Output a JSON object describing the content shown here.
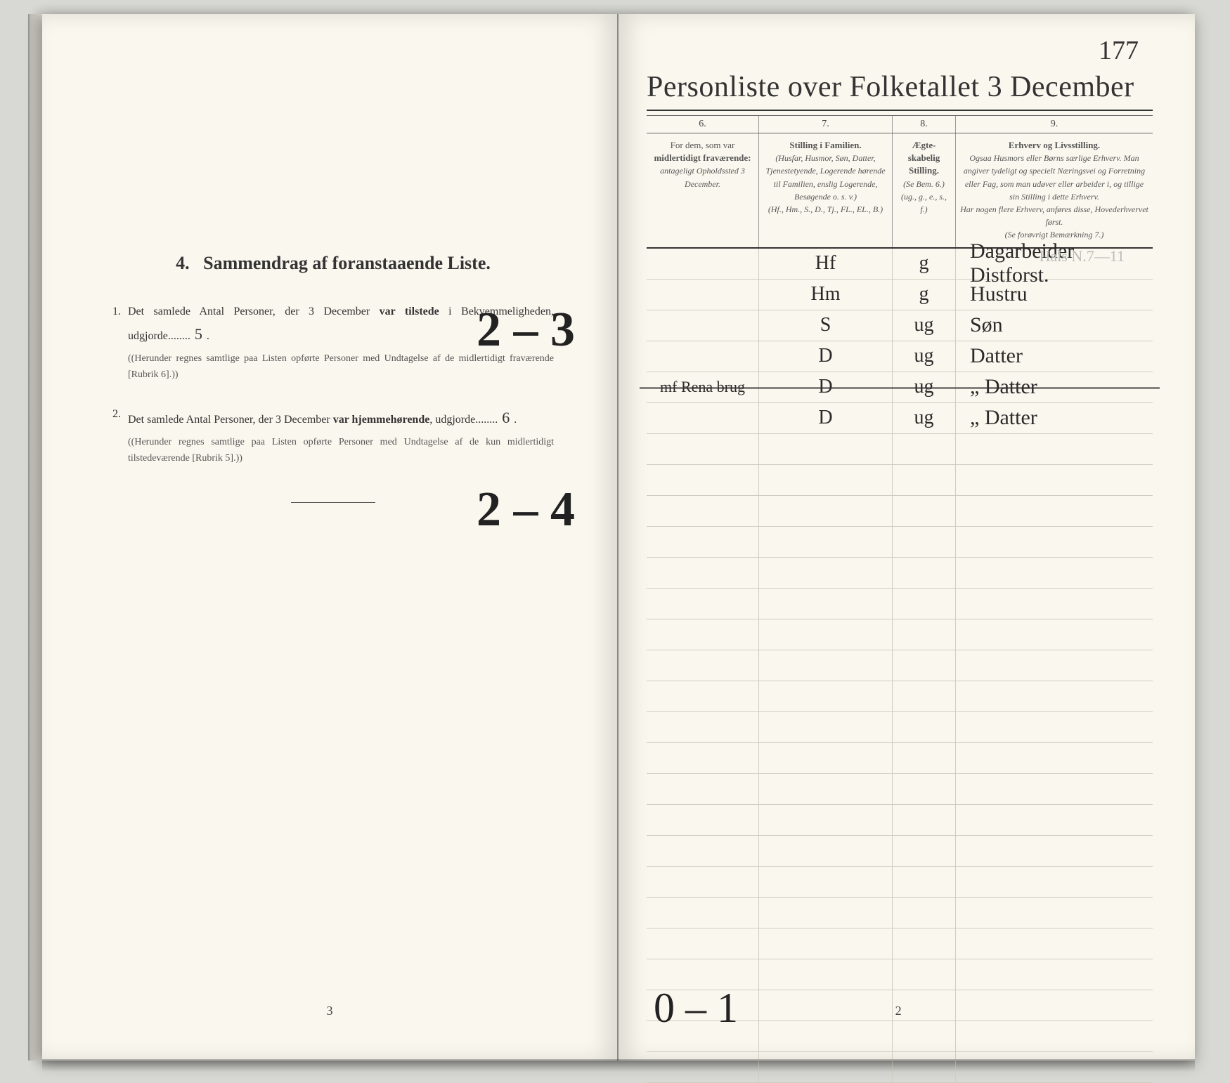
{
  "pageNumber": "177",
  "rightTitle": "Personliste over Folketallet 3 December",
  "columns": {
    "c6": {
      "num": "6.",
      "head": "For dem, som var",
      "bold": "midlertidigt fraværende:",
      "sub": "antageligt Opholdssted 3 December."
    },
    "c7": {
      "num": "7.",
      "head": "Stilling i Familien.",
      "sub1": "(Husfar, Husmor, Søn, Datter, Tjenestetyende, Logerende hørende til Familien, enslig Logerende, Besøgende o. s. v.)",
      "sub2": "(Hf., Hm., S., D., Tj., FL., EL., B.)"
    },
    "c8": {
      "num": "8.",
      "head": "Ægte-skabelig Stilling.",
      "sub1": "(Se Bem. 6.)",
      "sub2": "(ug., g., e., s., f.)"
    },
    "c9": {
      "num": "9.",
      "head": "Erhverv og Livsstilling.",
      "sub1": "Ogsaa Husmors eller Børns særlige Erhverv. Man angiver tydeligt og specielt Næringsvei og Forretning eller Fag, som man udøver eller arbeider i, og tillige sin Stilling i dette Erhverv.",
      "sub2": "Har nogen flere Erhverv, anføres disse, Hovederhvervet først.",
      "sub3": "(Se forøvrigt Bemærkning 7.)"
    }
  },
  "faintTop": "Hals N.7—11",
  "rows": [
    {
      "c6": "",
      "c7": "Hf",
      "c8": "g",
      "c9": "Dagarbeider Distforst."
    },
    {
      "c6": "",
      "c7": "Hm",
      "c8": "g",
      "c9": "Hustru"
    },
    {
      "c6": "",
      "c7": "S",
      "c8": "ug",
      "c9": "Søn"
    },
    {
      "c6": "",
      "c7": "D",
      "c8": "ug",
      "c9": "Datter"
    },
    {
      "c6": "mf Rena brug",
      "c7": "D",
      "c8": "ug",
      "c9": "„ Datter",
      "struck": true
    },
    {
      "c6": "",
      "c7": "D",
      "c8": "ug",
      "c9": "„ Datter"
    }
  ],
  "emptyRows": 21,
  "leftSection": {
    "title": {
      "num": "4.",
      "text": "Sammendrag af foranstaaende Liste."
    },
    "item1": {
      "n": "1.",
      "text1": "Det samlede Antal Personer, der 3 December ",
      "b1": "var tilstede",
      "text2": " i Bekvemmeligheden, udgjorde",
      "fill": "5",
      "sub": "(Herunder regnes samtlige paa Listen opførte Personer med Undtagelse af de midlertidigt fraværende [Rubrik 6].)",
      "hand": "2 – 3"
    },
    "item2": {
      "n": "2.",
      "text1": "Det samlede Antal Personer, der 3 December ",
      "b1": "var hjemmehørende",
      "text2": ", udgjorde",
      "fill": "6",
      "sub": "(Herunder regnes samtlige paa Listen opførte Personer med Undtagelse af de kun midlertidigt tilstedeværende [Rubrik 5].)",
      "hand": "2 – 4"
    }
  },
  "footLeft": "3",
  "footRight": "2",
  "footHand": "0 – 1"
}
